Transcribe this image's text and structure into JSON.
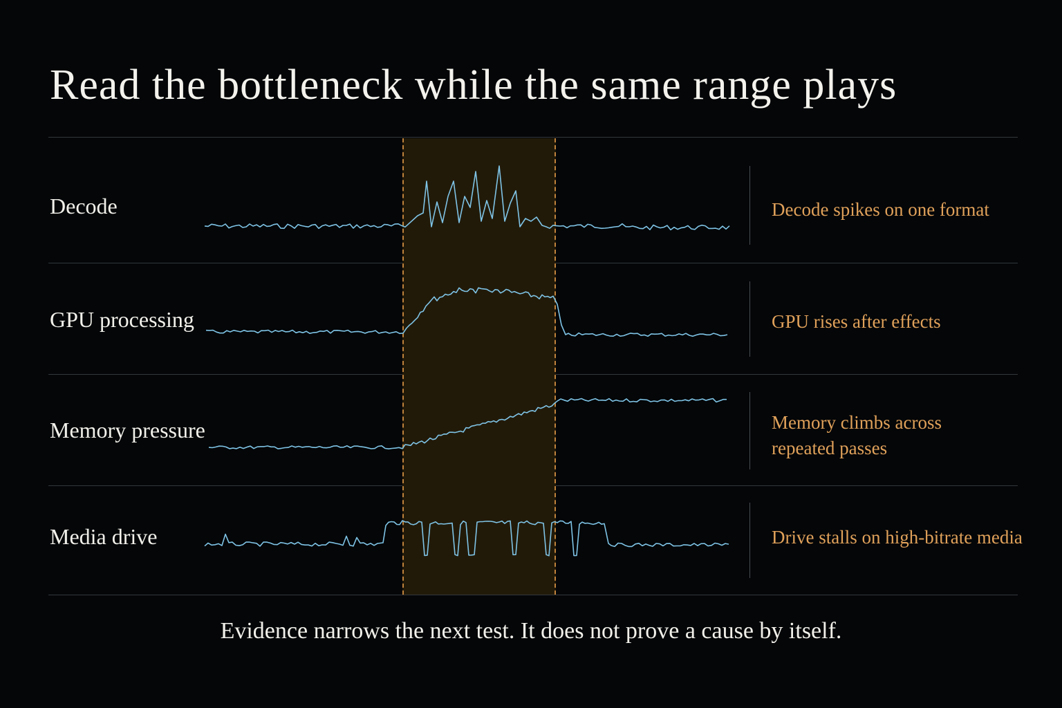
{
  "title": "Read the bottleneck while the same range plays",
  "trace_color": "#7fc4e6",
  "highlight_color": "#c0833b",
  "note_color": "#e0a15a",
  "rows": [
    {
      "label": "Decode",
      "note_lines": [
        "Decode spikes on one format"
      ],
      "pattern": "spikes"
    },
    {
      "label": "GPU processing",
      "note_lines": [
        "GPU rises after effects"
      ],
      "pattern": "plateau"
    },
    {
      "label": "Memory pressure",
      "note_lines": [
        "Memory climbs across",
        "repeated passes"
      ],
      "pattern": "ramp"
    },
    {
      "label": "Media drive",
      "note_lines": [
        "Drive stalls on high-bitrate media"
      ],
      "pattern": "stalls"
    }
  ],
  "footer": "Evidence narrows the next test. It does not prove a cause by itself."
}
